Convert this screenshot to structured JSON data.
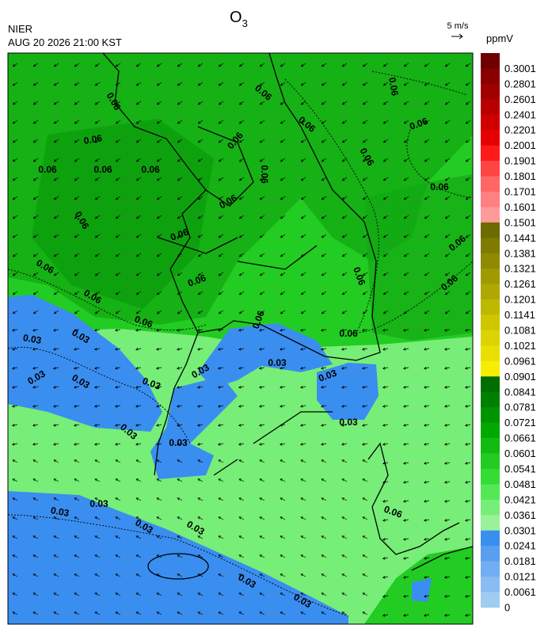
{
  "header": {
    "title": "O",
    "title_subscript": "3",
    "agency": "NIER",
    "datetime": "AUG 20 2026 21:00 KST"
  },
  "wind_scale": "5 m/s",
  "contour_labels": {
    "high": "0.06",
    "low": "0.03"
  },
  "colorbar": {
    "unit": "ppmV",
    "ticks": [
      0.3001,
      0.2801,
      0.2601,
      0.2401,
      0.2201,
      0.2001,
      0.1901,
      0.1801,
      0.1701,
      0.1601,
      0.1501,
      0.1441,
      0.1381,
      0.1321,
      0.1261,
      0.1201,
      0.1141,
      0.1081,
      0.1021,
      0.0961,
      0.0901,
      0.0841,
      0.0781,
      0.0721,
      0.0661,
      0.0601,
      0.0541,
      0.0481,
      0.0421,
      0.0361,
      0.0301,
      0.0241,
      0.0181,
      0.0121,
      0.0061,
      0
    ],
    "colors": [
      "#6e0000",
      "#8a0000",
      "#a00000",
      "#b80000",
      "#d00000",
      "#e60000",
      "#ff1a1a",
      "#ff4444",
      "#ff6666",
      "#ff8080",
      "#ff9a9a",
      "#6b6b00",
      "#7f7a00",
      "#8f8a00",
      "#9f9a00",
      "#afa800",
      "#bfb800",
      "#cfc600",
      "#dcd400",
      "#eae000",
      "#f5ee00",
      "#006e00",
      "#008000",
      "#009400",
      "#00a800",
      "#12bb12",
      "#22cc22",
      "#33dd33",
      "#55e855",
      "#77ee77",
      "#99f299",
      "#3a8ef0",
      "#5a9ef0",
      "#72aef2",
      "#88bcf2",
      "#a0ccf2"
    ]
  }
}
